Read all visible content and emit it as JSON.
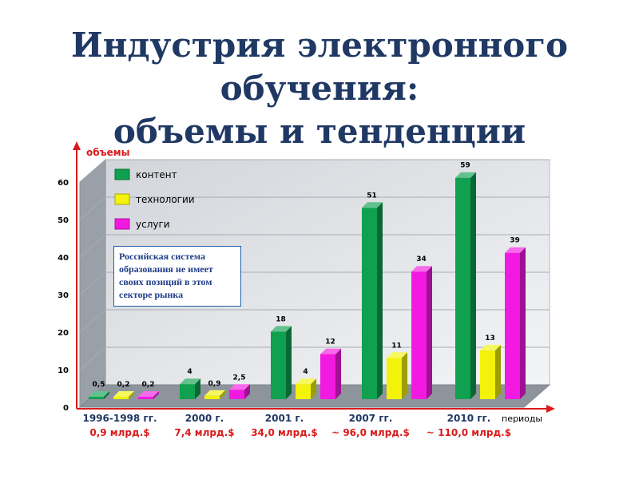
{
  "title": {
    "line1": "Индустрия электронного",
    "line2": "обучения:",
    "line3": "объемы и тенденции"
  },
  "note": "Российская система образования не имеет своих позиций в этом секторе рынка",
  "chart_data": {
    "type": "bar",
    "ylabel": "объемы",
    "xlabel": "периоды",
    "ylim": [
      0,
      60
    ],
    "yticks": [
      0,
      10,
      20,
      30,
      40,
      50,
      60
    ],
    "categories": [
      "1996-1998 гг.",
      "2000 г.",
      "2001 г.",
      "2007 гг.",
      "2010 гг."
    ],
    "totals": [
      "0,9 млрд.$",
      "7,4 млрд.$",
      "34,0 млрд.$",
      "~ 96,0 млрд.$",
      "~ 110,0 млрд.$"
    ],
    "legend_position": "top-left",
    "grid": true,
    "series": [
      {
        "name": "контент",
        "color": "#0fa050",
        "values": [
          0.5,
          4,
          18,
          51,
          59
        ],
        "labels": [
          "0,5",
          "4",
          "18",
          "51",
          "59"
        ]
      },
      {
        "name": "технологии",
        "color": "#f2f20a",
        "values": [
          0.2,
          0.9,
          4,
          11,
          13
        ],
        "labels": [
          "0,2",
          "0,9",
          "4",
          "11",
          "13"
        ]
      },
      {
        "name": "услуги",
        "color": "#f21ae0",
        "values": [
          0.2,
          2.5,
          12,
          34,
          39
        ],
        "labels": [
          "0,2",
          "2,5",
          "12",
          "34",
          "39"
        ]
      }
    ]
  }
}
